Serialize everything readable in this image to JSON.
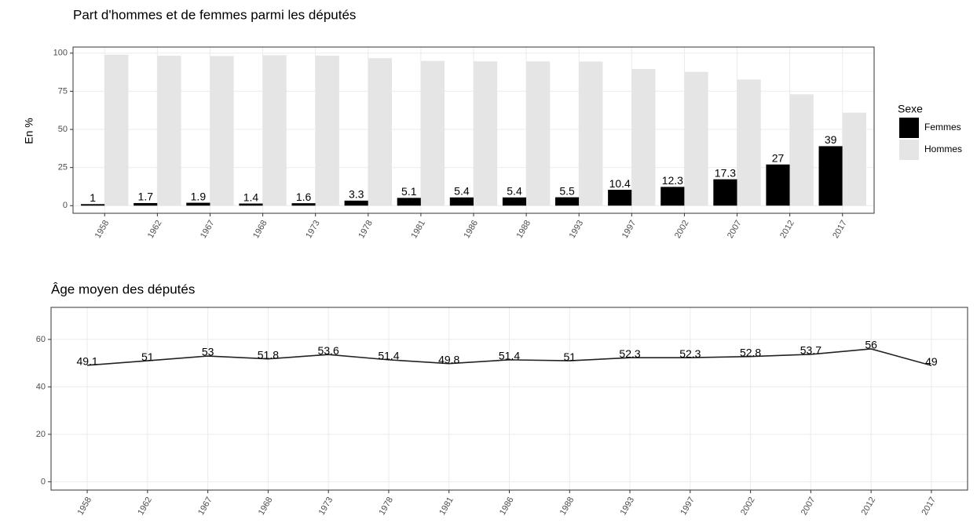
{
  "chart_data": [
    {
      "type": "bar",
      "title": "Part d'hommes et de femmes parmi les députés",
      "ylabel": "En %",
      "categories": [
        "1958",
        "1962",
        "1967",
        "1968",
        "1973",
        "1978",
        "1981",
        "1986",
        "1988",
        "1993",
        "1997",
        "2002",
        "2007",
        "2012",
        "2017"
      ],
      "series": [
        {
          "name": "Femmes",
          "color": "#000000",
          "values": [
            1,
            1.7,
            1.9,
            1.4,
            1.6,
            3.3,
            5.1,
            5.4,
            5.4,
            5.5,
            10.4,
            12.3,
            17.3,
            27,
            39
          ]
        },
        {
          "name": "Hommes",
          "color": "#e5e5e5",
          "values": [
            99,
            98.3,
            98.1,
            98.6,
            98.4,
            96.7,
            94.9,
            94.6,
            94.6,
            94.5,
            89.6,
            87.7,
            82.7,
            73,
            61
          ]
        }
      ],
      "legend_title": "Sexe",
      "legend": "right",
      "ylim": [
        -5,
        104
      ],
      "yticks": [
        0,
        25,
        50,
        75,
        100
      ],
      "grid": true
    },
    {
      "type": "line",
      "title": "Âge moyen des députés",
      "categories": [
        "1958",
        "1962",
        "1967",
        "1968",
        "1973",
        "1978",
        "1981",
        "1986",
        "1988",
        "1993",
        "1997",
        "2002",
        "2007",
        "2012",
        "2017"
      ],
      "values": [
        49.1,
        51,
        53,
        51.8,
        53.6,
        51.4,
        49.8,
        51.4,
        51,
        52.3,
        52.3,
        52.8,
        53.7,
        56,
        49
      ],
      "color": "#222222",
      "ylim": [
        -3.5,
        73.5
      ],
      "yticks": [
        0,
        20,
        40,
        60
      ],
      "grid": true
    }
  ]
}
